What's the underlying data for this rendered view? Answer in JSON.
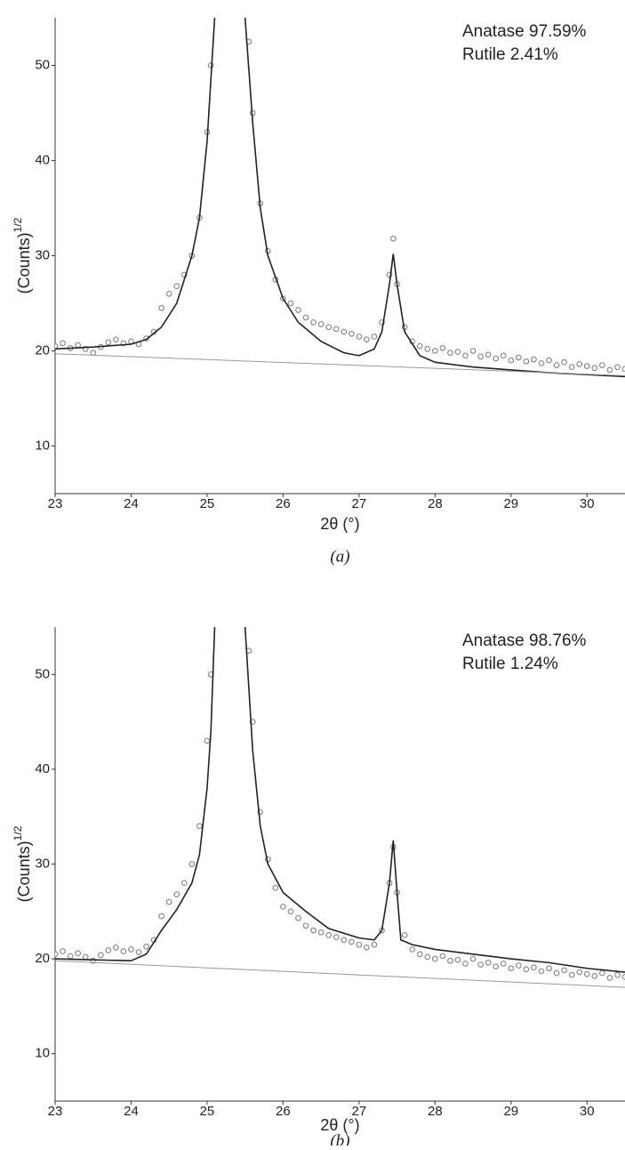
{
  "chart_data": [
    {
      "type": "scatter",
      "caption": "(a)",
      "xlabel": "2θ (°)",
      "ylabel": "(Counts)",
      "ylabel_superscript": "1/2",
      "annotations": [
        "Anatase 97.59%",
        "Rutile 2.41%"
      ],
      "xlim": [
        23,
        30.5
      ],
      "ylim": [
        5,
        55
      ],
      "xticks": [
        23,
        24,
        25,
        26,
        27,
        28,
        29,
        30
      ],
      "yticks": [
        10,
        20,
        30,
        40,
        50
      ],
      "series": [
        {
          "type": "scatter",
          "color": "#777777",
          "x": [
            23.0,
            23.1,
            23.2,
            23.3,
            23.4,
            23.5,
            23.6,
            23.7,
            23.8,
            23.9,
            24.0,
            24.1,
            24.2,
            24.3,
            24.4,
            24.5,
            24.6,
            24.7,
            24.8,
            24.9,
            25.0,
            25.05,
            25.55,
            25.6,
            25.7,
            25.8,
            25.9,
            26.0,
            26.1,
            26.2,
            26.3,
            26.4,
            26.5,
            26.6,
            26.7,
            26.8,
            26.9,
            27.0,
            27.1,
            27.2,
            27.3,
            27.4,
            27.45,
            27.5,
            27.6,
            27.7,
            27.8,
            27.9,
            28.0,
            28.1,
            28.2,
            28.3,
            28.4,
            28.5,
            28.6,
            28.7,
            28.8,
            28.9,
            29.0,
            29.1,
            29.2,
            29.3,
            29.4,
            29.5,
            29.6,
            29.7,
            29.8,
            29.9,
            30.0,
            30.1,
            30.2,
            30.3,
            30.4,
            30.5
          ],
          "values": [
            20.5,
            20.8,
            20.3,
            20.6,
            20.2,
            19.8,
            20.4,
            20.9,
            21.2,
            20.8,
            21.0,
            20.7,
            21.3,
            22.0,
            24.5,
            26.0,
            26.8,
            28.0,
            30.0,
            34.0,
            43.0,
            50.0,
            52.5,
            45.0,
            35.5,
            30.5,
            27.5,
            25.5,
            25.0,
            24.3,
            23.5,
            23.0,
            22.8,
            22.5,
            22.3,
            22.0,
            21.8,
            21.5,
            21.2,
            21.5,
            23.0,
            28.0,
            31.8,
            27.0,
            22.5,
            21.0,
            20.5,
            20.2,
            20.0,
            20.3,
            19.8,
            19.9,
            19.5,
            20.0,
            19.4,
            19.6,
            19.2,
            19.5,
            19.0,
            19.3,
            18.9,
            19.1,
            18.7,
            19.0,
            18.5,
            18.8,
            18.3,
            18.6,
            18.4,
            18.2,
            18.5,
            18.0,
            18.3,
            18.1
          ]
        },
        {
          "type": "line",
          "color": "#222222",
          "x": [
            23,
            23.5,
            24,
            24.2,
            24.4,
            24.6,
            24.8,
            24.9,
            25.0,
            25.1,
            25.3,
            25.5,
            25.6,
            25.7,
            25.8,
            26.0,
            26.2,
            26.5,
            26.8,
            27.0,
            27.2,
            27.3,
            27.4,
            27.45,
            27.5,
            27.6,
            27.8,
            28.0,
            28.5,
            29,
            29.5,
            30,
            30.5
          ],
          "values": [
            20.2,
            20.4,
            20.7,
            21.2,
            22.5,
            25,
            30,
            34,
            42,
            55,
            100,
            55,
            44,
            35,
            30,
            25.5,
            23,
            21,
            19.8,
            19.5,
            20.2,
            22,
            27,
            30.2,
            27,
            22,
            19.5,
            18.8,
            18.3,
            18,
            17.7,
            17.5,
            17.3
          ]
        },
        {
          "type": "line",
          "color": "#999999",
          "x": [
            23,
            30.5
          ],
          "values": [
            19.7,
            17.4
          ]
        }
      ]
    },
    {
      "type": "scatter",
      "caption": "(b)",
      "xlabel": "2θ (°)",
      "ylabel": "(Counts)",
      "ylabel_superscript": "1/2",
      "annotations": [
        "Anatase 98.76%",
        "Rutile 1.24%"
      ],
      "xlim": [
        23,
        30.5
      ],
      "ylim": [
        5,
        55
      ],
      "xticks": [
        23,
        24,
        25,
        26,
        27,
        28,
        29,
        30
      ],
      "yticks": [
        10,
        20,
        30,
        40,
        50
      ],
      "series": [
        {
          "type": "scatter",
          "color": "#777777",
          "x": [
            23.0,
            23.1,
            23.2,
            23.3,
            23.4,
            23.5,
            23.6,
            23.7,
            23.8,
            23.9,
            24.0,
            24.1,
            24.2,
            24.3,
            24.4,
            24.5,
            24.6,
            24.7,
            24.8,
            24.9,
            25.0,
            25.05,
            25.55,
            25.6,
            25.7,
            25.8,
            25.9,
            26.0,
            26.1,
            26.2,
            26.3,
            26.4,
            26.5,
            26.6,
            26.7,
            26.8,
            26.9,
            27.0,
            27.1,
            27.2,
            27.3,
            27.4,
            27.45,
            27.5,
            27.6,
            27.7,
            27.8,
            27.9,
            28.0,
            28.1,
            28.2,
            28.3,
            28.4,
            28.5,
            28.6,
            28.7,
            28.8,
            28.9,
            29.0,
            29.1,
            29.2,
            29.3,
            29.4,
            29.5,
            29.6,
            29.7,
            29.8,
            29.9,
            30.0,
            30.1,
            30.2,
            30.3,
            30.4,
            30.5
          ],
          "values": [
            20.5,
            20.8,
            20.3,
            20.6,
            20.2,
            19.8,
            20.4,
            20.9,
            21.2,
            20.8,
            21.0,
            20.7,
            21.3,
            22.0,
            24.5,
            26.0,
            26.8,
            28.0,
            30.0,
            34.0,
            43.0,
            50.0,
            52.5,
            45.0,
            35.5,
            30.5,
            27.5,
            25.5,
            25.0,
            24.3,
            23.5,
            23.0,
            22.8,
            22.5,
            22.3,
            22.0,
            21.8,
            21.5,
            21.2,
            21.5,
            23.0,
            28.0,
            31.8,
            27.0,
            22.5,
            21.0,
            20.5,
            20.2,
            20.0,
            20.3,
            19.8,
            19.9,
            19.5,
            20.0,
            19.4,
            19.6,
            19.2,
            19.5,
            19.0,
            19.3,
            18.9,
            19.1,
            18.7,
            19.0,
            18.5,
            18.8,
            18.3,
            18.6,
            18.4,
            18.2,
            18.5,
            18.0,
            18.3,
            18.1
          ]
        },
        {
          "type": "line",
          "color": "#222222",
          "x": [
            23,
            23.5,
            24,
            24.2,
            24.4,
            24.6,
            24.8,
            24.9,
            25.0,
            25.05,
            25.1,
            25.3,
            25.5,
            25.6,
            25.7,
            25.8,
            26.0,
            26.3,
            26.6,
            27.0,
            27.2,
            27.3,
            27.4,
            27.45,
            27.5,
            27.55,
            27.7,
            28,
            28.5,
            29,
            29.5,
            30,
            30.5
          ],
          "values": [
            20,
            19.9,
            19.8,
            20.5,
            23,
            25.2,
            28,
            31,
            38,
            44,
            55,
            100,
            55,
            42,
            34,
            30,
            27,
            25,
            23.2,
            22.2,
            22,
            23,
            28,
            32.5,
            27,
            22,
            21.5,
            21,
            20.5,
            20,
            19.6,
            19,
            18.6
          ]
        },
        {
          "type": "line",
          "color": "#999999",
          "x": [
            23,
            30.5
          ],
          "values": [
            19.8,
            17.0
          ]
        }
      ]
    }
  ]
}
